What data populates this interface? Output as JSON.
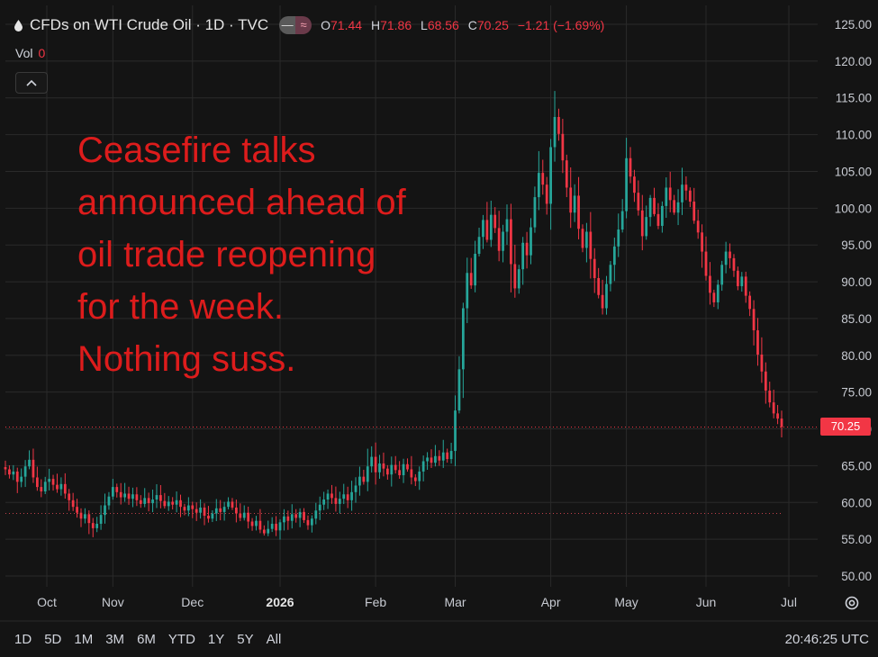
{
  "header": {
    "symbol_title": "CFDs on WTI Crude Oil · 1D · TVC",
    "toggle_left": "—",
    "toggle_right": "≈",
    "ohlc": {
      "o_label": "O",
      "o_value": "71.44",
      "h_label": "H",
      "h_value": "71.86",
      "l_label": "L",
      "l_value": "68.56",
      "c_label": "C",
      "c_value": "70.25",
      "change": "−1.21 (−1.69%)"
    }
  },
  "volume": {
    "label": "Vol",
    "value": "0"
  },
  "collapse_icon": "chevron-up-icon",
  "annotation_lines": [
    "Ceasefire talks",
    "announced ahead of",
    "oil trade reopening",
    "for the week.",
    "Nothing suss."
  ],
  "current_price_label": "70.25",
  "time_ranges": [
    "1D",
    "5D",
    "1M",
    "3M",
    "6M",
    "YTD",
    "1Y",
    "5Y",
    "All"
  ],
  "clock": "20:46:25 UTC",
  "colors": {
    "up": "#26a69a",
    "down": "#f23645",
    "background": "#141414",
    "grid": "#2a2a2a",
    "annotation": "#dd1c1c"
  },
  "chart_data": {
    "type": "candlestick",
    "title": "CFDs on WTI Crude Oil · 1D · TVC",
    "y_ticks": [
      "125.00",
      "120.00",
      "115.00",
      "110.00",
      "105.00",
      "100.00",
      "95.00",
      "90.00",
      "85.00",
      "80.00",
      "75.00",
      "70.00",
      "65.00",
      "60.00",
      "55.00",
      "50.00"
    ],
    "ylim": [
      50,
      125
    ],
    "x_ticks": [
      "Oct",
      "Nov",
      "Dec",
      "2026",
      "Feb",
      "Mar",
      "Apr",
      "May",
      "Jun",
      "Jul"
    ],
    "grid": true,
    "last_close": 70.25,
    "previous_close_reference": 58.5,
    "close_series_by_period": [
      {
        "period": "Oct",
        "closes": [
          64.5,
          63.8,
          64.2,
          62.8,
          63.5,
          64.9,
          65.8,
          63.4,
          62.1,
          61.5,
          62.8,
          63.2,
          62.4,
          61.8,
          62.5,
          61.2,
          60.3,
          59.4,
          58.6,
          57.8,
          58.4,
          57.2,
          56.5,
          57.1,
          58.3,
          59.6,
          60.8
        ]
      },
      {
        "period": "Nov",
        "closes": [
          62.1,
          61.4,
          60.7,
          61.2,
          60.5,
          61.1,
          60.3,
          59.8,
          60.6,
          59.9,
          60.4,
          61.0,
          60.2,
          59.5,
          60.1,
          59.7,
          60.3,
          59.4,
          58.9,
          59.6
        ]
      },
      {
        "period": "Dec",
        "closes": [
          59.1,
          58.6,
          59.3,
          58.2,
          57.8,
          58.5,
          59.2,
          58.7,
          59.4,
          60.1,
          59.3,
          58.5,
          57.9,
          58.6,
          57.4,
          56.8,
          57.5,
          56.3,
          55.8,
          56.4,
          57.1,
          56.2
        ]
      },
      {
        "period": "2026",
        "closes": [
          57.3,
          58.1,
          57.5,
          58.4,
          57.9,
          58.7,
          57.6,
          56.9,
          57.8,
          58.9,
          59.7,
          60.4,
          61.2,
          60.6,
          59.8,
          60.5,
          61.1,
          60.3,
          61.4,
          62.3,
          63.5,
          62.8,
          64.9,
          66.2
        ]
      },
      {
        "period": "Feb",
        "closes": [
          64.1,
          65.3,
          64.6,
          63.8,
          65.1,
          64.4,
          63.7,
          65.2,
          64.5,
          63.4,
          62.9,
          64.2,
          65.6,
          66.1,
          65.4,
          66.3,
          65.7,
          66.8,
          65.9,
          67.0
        ]
      },
      {
        "period": "Mar",
        "closes": [
          72.5,
          78.1,
          86.4,
          91.2,
          89.5,
          93.8,
          96.1,
          98.4,
          95.7,
          99.1,
          97.3,
          94.2,
          96.8,
          98.5,
          92.4,
          89.1,
          91.7,
          95.3,
          93.6,
          97.4,
          101.5,
          104.8,
          103.2,
          100.6
        ]
      },
      {
        "period": "Apr",
        "closes": [
          108.3,
          112.4,
          110.1,
          106.5,
          102.8,
          99.4,
          101.7,
          97.2,
          94.6,
          96.8,
          93.1,
          90.5,
          88.2,
          86.4,
          89.7,
          92.3,
          94.8,
          97.1,
          99.6
        ]
      },
      {
        "period": "May",
        "closes": [
          106.8,
          104.3,
          102.1,
          99.7,
          96.2,
          98.8,
          101.4,
          99.2,
          97.6,
          100.3,
          102.8,
          101.1,
          99.4,
          100.8,
          103.2,
          102.4,
          100.9,
          98.3,
          96.7,
          94.1
        ]
      },
      {
        "period": "Jun",
        "closes": [
          90.8,
          88.5,
          87.2,
          89.6,
          92.3,
          94.1,
          93.2,
          91.5,
          89.4,
          90.7,
          88.1,
          86.3,
          83.4,
          80.1,
          77.8,
          75.2,
          73.6,
          72.1,
          71.4,
          70.25
        ]
      }
    ]
  }
}
